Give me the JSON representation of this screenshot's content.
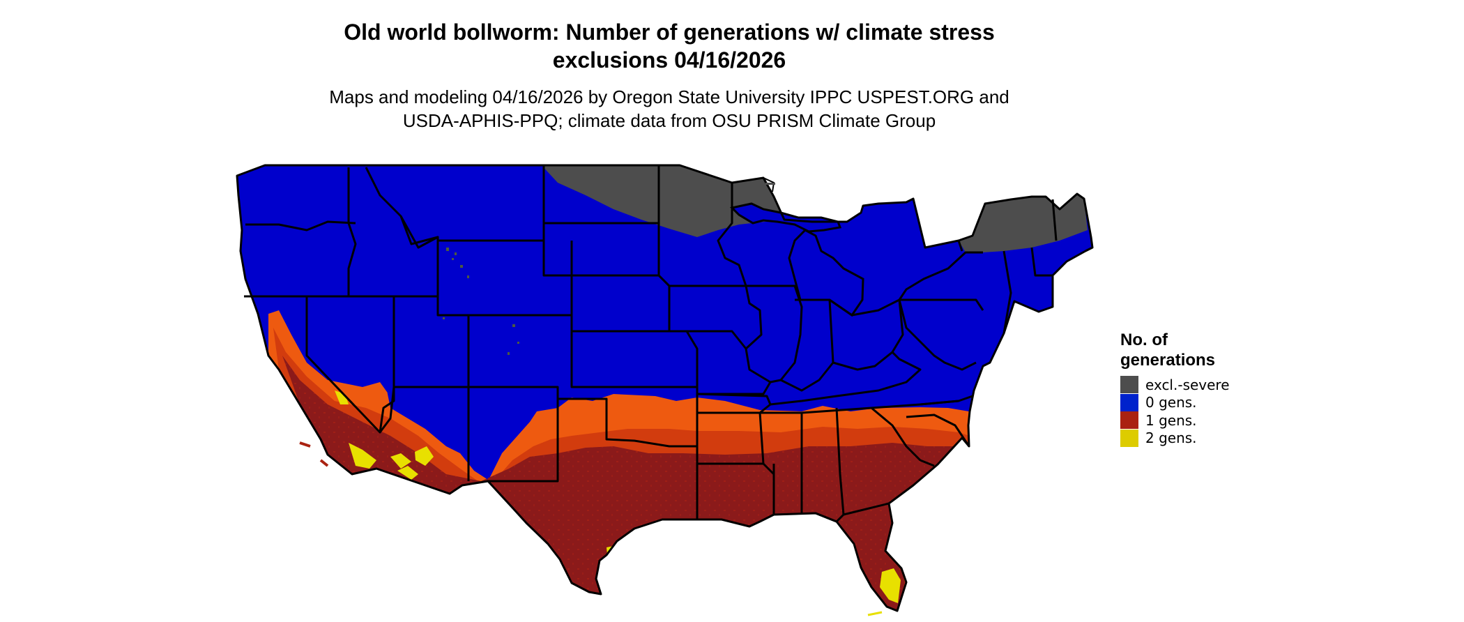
{
  "map": {
    "title_line1": "Old world bollworm: Number of generations w/ climate stress",
    "title_line2": "exclusions 04/16/2026",
    "subtitle_line1": "Maps and modeling 04/16/2026 by Oregon State University IPPC USPEST.ORG and",
    "subtitle_line2": "USDA-APHIS-PPQ; climate data from OSU PRISM Climate Group"
  },
  "legend": {
    "title_line1": "No. of",
    "title_line2": "generations",
    "items": [
      {
        "label": "excl.-severe",
        "color": "#4d4d4d"
      },
      {
        "label": "0 gens.",
        "color": "#0022cc"
      },
      {
        "label": "1 gens.",
        "color": "#aa2211"
      },
      {
        "label": "2 gens.",
        "color": "#ddcc00"
      }
    ]
  },
  "colors": {
    "excl_severe_region": "#4d4d4d",
    "zero_gen_region": "#0000cc",
    "one_gen_core": "#8b1a1a",
    "one_gen_edge": "#d23c0e",
    "one_gen_fringe": "#ee5a10",
    "two_gen_region": "#e8e000",
    "border": "#000000"
  }
}
